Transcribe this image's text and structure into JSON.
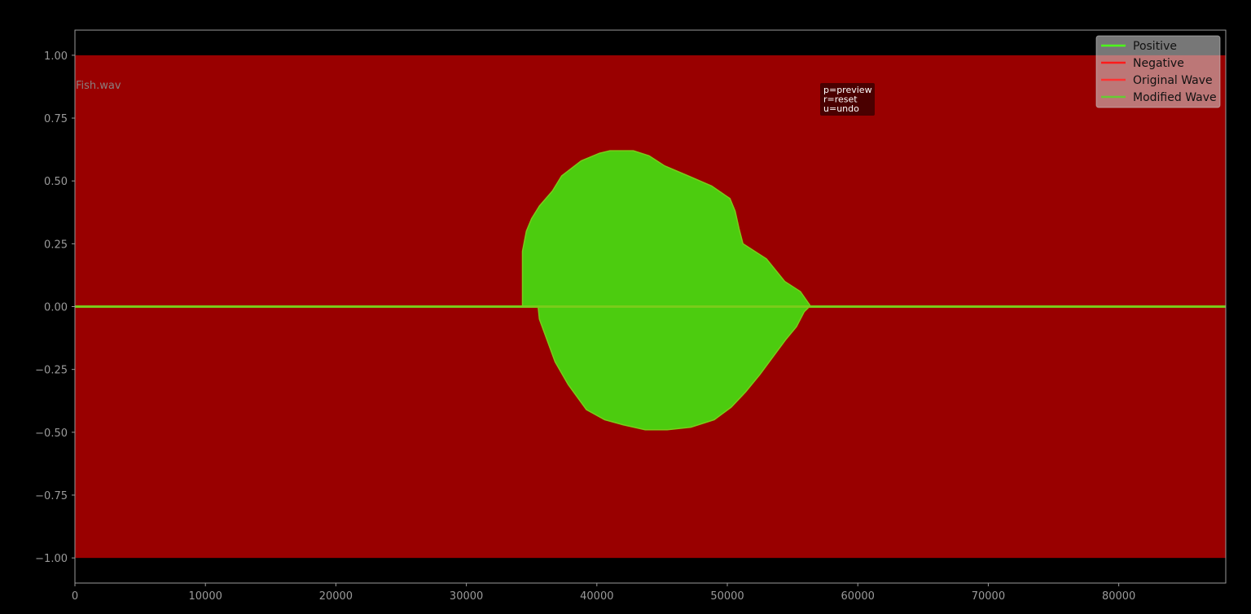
{
  "chart_data": {
    "type": "area",
    "title": "",
    "xlabel": "",
    "ylabel": "",
    "xlim": [
      0,
      88200
    ],
    "ylim": [
      -1.1,
      1.1
    ],
    "grid": false,
    "x_ticks": [
      0,
      10000,
      20000,
      30000,
      40000,
      50000,
      60000,
      70000,
      80000
    ],
    "x_tick_labels": [
      "0",
      "10000",
      "20000",
      "30000",
      "40000",
      "50000",
      "60000",
      "70000",
      "80000"
    ],
    "y_ticks": [
      1.0,
      0.75,
      0.5,
      0.25,
      0.0,
      -0.25,
      -0.5,
      -0.75,
      -1.0
    ],
    "y_tick_labels": [
      "1.00",
      "0.75",
      "0.50",
      "0.25",
      "0.00",
      "−0.25",
      "−0.50",
      "−0.75",
      "−1.00"
    ],
    "annotation_file": "Fish.wav",
    "annotation_hints": [
      "p=preview",
      "r=reset",
      "u=undo"
    ],
    "legend_placement": "top-right",
    "legend": [
      {
        "label": "Positive",
        "color": "#4cff1a"
      },
      {
        "label": "Negative",
        "color": "#ff1a1a"
      },
      {
        "label": "Original Wave",
        "color": "#ff3333"
      },
      {
        "label": "Modified Wave",
        "color": "#66cc33"
      }
    ],
    "colors": {
      "background": "#000000",
      "negative_fill": "#990000",
      "modified_fill": "#4ccc0f",
      "modified_line": "#7acc1a",
      "axis": "#9a9a9a"
    },
    "series": [
      {
        "name": "Negative",
        "fill_band": [
          -1.0,
          1.0
        ],
        "x": [
          0,
          88200
        ]
      },
      {
        "name": "Modified Wave",
        "upper": {
          "x": [
            0,
            34300,
            34300,
            34600,
            35000,
            35600,
            36600,
            37300,
            38800,
            40200,
            41000,
            42800,
            44000,
            45200,
            47000,
            48800,
            50200,
            50600,
            50900,
            51200,
            53000,
            54400,
            55600,
            56400,
            56700,
            56800,
            56900,
            88200
          ],
          "y": [
            0.0,
            0.0,
            0.22,
            0.3,
            0.35,
            0.4,
            0.46,
            0.52,
            0.58,
            0.61,
            0.62,
            0.62,
            0.6,
            0.56,
            0.52,
            0.48,
            0.43,
            0.38,
            0.31,
            0.25,
            0.19,
            0.1,
            0.06,
            0.0,
            0.0,
            0.0,
            0.0,
            0.0
          ]
        },
        "lower": {
          "x": [
            0,
            35500,
            35600,
            36800,
            37800,
            39200,
            40600,
            42000,
            43700,
            45400,
            47200,
            49000,
            50300,
            51400,
            52500,
            53500,
            54500,
            55300,
            55900,
            56300,
            56700,
            56900,
            88200
          ],
          "y": [
            0.0,
            0.0,
            -0.05,
            -0.22,
            -0.31,
            -0.41,
            -0.45,
            -0.47,
            -0.49,
            -0.49,
            -0.48,
            -0.45,
            -0.4,
            -0.34,
            -0.27,
            -0.2,
            -0.13,
            -0.08,
            -0.02,
            0.0,
            0.0,
            0.0,
            0.0
          ]
        }
      }
    ]
  }
}
